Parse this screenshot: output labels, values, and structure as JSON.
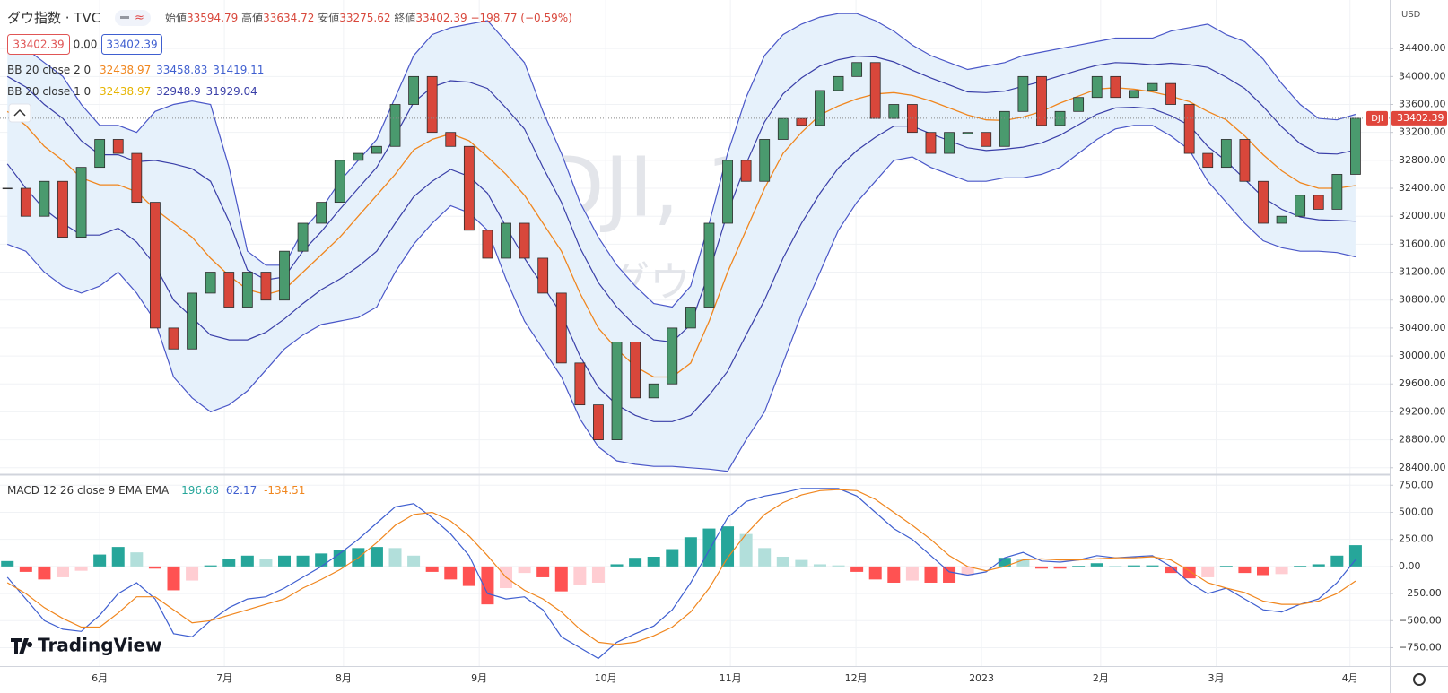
{
  "header": {
    "symbol": "ダウ指数 · TVC",
    "open_label": "始値",
    "open": 33594.79,
    "high_label": "高値",
    "high": 33634.72,
    "low_label": "安値",
    "low": 33275.62,
    "close_label": "終値",
    "change": "−198.77 (−0.59%)",
    "spread": "0.00",
    "currency": "USD",
    "brand": "TradingView"
  },
  "chart_data": [
    {
      "type": "candlestick",
      "title": "DJI, 1日",
      "subtitle": "ダウ指数",
      "symbol_tag": "DJI",
      "up_color": "#4a9a6e",
      "down_color": "#d8473b",
      "last_color": "#e0463c",
      "middle_color": "#f0861e",
      "middle_alt_color": "#e6b400",
      "fill_color": "#e6f1fb",
      "xlim": [
        -0.4,
        74.85
      ],
      "ylim": [
        28320,
        35095
      ],
      "yticks": [
        {
          "value": 28400,
          "label": "28400.00"
        },
        {
          "value": 28800,
          "label": "28800.00"
        },
        {
          "value": 29200,
          "label": "29200.00"
        },
        {
          "value": 29600,
          "label": "29600.00"
        },
        {
          "value": 30000,
          "label": "30000.00"
        },
        {
          "value": 30400,
          "label": "30400.00"
        },
        {
          "value": 30800,
          "label": "30800.00"
        },
        {
          "value": 31200,
          "label": "31200.00"
        },
        {
          "value": 31600,
          "label": "31600.00"
        },
        {
          "value": 32000,
          "label": "32000.00"
        },
        {
          "value": 32400,
          "label": "32400.00"
        },
        {
          "value": 32800,
          "label": "32800.00"
        },
        {
          "value": 33200,
          "label": "33200.00"
        },
        {
          "value": 33600,
          "label": "33600.00"
        },
        {
          "value": 34000,
          "label": "34000.00"
        },
        {
          "value": 34400,
          "label": "34400.00"
        }
      ],
      "close": [
        32400,
        32000,
        32500,
        31700,
        32700,
        33100,
        32900,
        32200,
        30400,
        30100,
        30900,
        31200,
        30700,
        31200,
        30800,
        31500,
        31900,
        32200,
        32800,
        32900,
        33000,
        33600,
        34000,
        33200,
        33000,
        31800,
        31400,
        31900,
        31400,
        30900,
        29900,
        29300,
        28800,
        30200,
        29400,
        29600,
        30400,
        30700,
        31900,
        32800,
        32500,
        33100,
        33400,
        33300,
        33800,
        34000,
        34200,
        33400,
        33600,
        33200,
        32900,
        33200,
        33200,
        33000,
        33500,
        34000,
        33300,
        33500,
        33700,
        34000,
        33700,
        33800,
        33900,
        33600,
        32900,
        32700,
        33100,
        32500,
        31900,
        32000,
        32300,
        32100,
        32600,
        33402.39
      ],
      "middle": [
        33500,
        33300,
        33000,
        32800,
        32550,
        32450,
        32450,
        32350,
        32100,
        31900,
        31700,
        31400,
        31150,
        30950,
        30880,
        30950,
        31200,
        31450,
        31700,
        32000,
        32300,
        32600,
        32950,
        33100,
        33180,
        33080,
        32850,
        32600,
        32300,
        31900,
        31500,
        30900,
        30400,
        30100,
        29850,
        29700,
        29700,
        29900,
        30500,
        31200,
        31800,
        32400,
        32900,
        33200,
        33450,
        33580,
        33680,
        33750,
        33770,
        33730,
        33650,
        33550,
        33450,
        33380,
        33370,
        33420,
        33500,
        33620,
        33720,
        33820,
        33840,
        33820,
        33780,
        33720,
        33640,
        33500,
        33380,
        33150,
        32880,
        32650,
        32480,
        32400,
        32400,
        32438.97
      ],
      "bands": [
        {
          "name": "BB 20 close 2 0",
          "color": "#4a57c8",
          "upper": [
            34500,
            34400,
            34200,
            34000,
            33600,
            33300,
            33300,
            33200,
            33500,
            33600,
            33650,
            33600,
            32700,
            31500,
            31300,
            31300,
            31800,
            32100,
            32500,
            32800,
            33100,
            33700,
            34300,
            34600,
            34700,
            34750,
            34800,
            34500,
            34200,
            33500,
            32900,
            32200,
            31700,
            31300,
            31000,
            30750,
            30700,
            31000,
            31900,
            32900,
            33700,
            34300,
            34600,
            34750,
            34850,
            34900,
            34900,
            34800,
            34650,
            34450,
            34300,
            34200,
            34100,
            34150,
            34200,
            34300,
            34350,
            34400,
            34450,
            34500,
            34550,
            34550,
            34550,
            34650,
            34700,
            34750,
            34600,
            34500,
            34250,
            33900,
            33600,
            33400,
            33380,
            33458.83
          ],
          "lower": [
            31600,
            31500,
            31200,
            31000,
            30900,
            31000,
            31200,
            30900,
            30500,
            29700,
            29400,
            29200,
            29300,
            29500,
            29800,
            30100,
            30300,
            30450,
            30500,
            30550,
            30700,
            31200,
            31600,
            31900,
            32150,
            32050,
            31800,
            31100,
            30500,
            30100,
            29700,
            29100,
            28700,
            28500,
            28450,
            28420,
            28420,
            28400,
            28380,
            28350,
            28800,
            29200,
            29900,
            30600,
            31200,
            31800,
            32200,
            32500,
            32800,
            32850,
            32700,
            32600,
            32500,
            32500,
            32550,
            32550,
            32600,
            32700,
            32900,
            33100,
            33250,
            33300,
            33300,
            33150,
            32950,
            32500,
            32200,
            31900,
            31650,
            31550,
            31500,
            31500,
            31480,
            31419.11
          ]
        },
        {
          "name": "BB 20 close 1 0",
          "color": "#3a3fa8",
          "upper": [
            34000,
            33850,
            33600,
            33400,
            33080,
            32880,
            32880,
            32780,
            32800,
            32750,
            32680,
            32500,
            31930,
            31230,
            31090,
            31130,
            31500,
            31780,
            32100,
            32400,
            32700,
            33150,
            33630,
            33850,
            33940,
            33920,
            33830,
            33550,
            33250,
            32700,
            32200,
            31550,
            31050,
            30700,
            30430,
            30230,
            30200,
            30450,
            31200,
            32050,
            32750,
            33350,
            33750,
            33980,
            34150,
            34240,
            34290,
            34280,
            34210,
            34090,
            33980,
            33880,
            33780,
            33770,
            33790,
            33860,
            33930,
            34010,
            34090,
            34160,
            34200,
            34190,
            34170,
            34190,
            34170,
            34130,
            33990,
            33830,
            33570,
            33280,
            33040,
            32900,
            32890,
            32948.9
          ],
          "lower": [
            32750,
            32400,
            32100,
            31900,
            31730,
            31730,
            31830,
            31630,
            31300,
            30800,
            30550,
            30300,
            30230,
            30230,
            30340,
            30530,
            30750,
            30950,
            31100,
            31280,
            31500,
            31900,
            32280,
            32500,
            32670,
            32570,
            32330,
            31850,
            31400,
            31000,
            30600,
            30000,
            29550,
            29300,
            29150,
            29060,
            29060,
            29150,
            29440,
            29780,
            30300,
            30800,
            31400,
            31900,
            32330,
            32690,
            32940,
            33130,
            33290,
            33290,
            33180,
            33080,
            32980,
            32940,
            32960,
            32990,
            33050,
            33160,
            33310,
            33460,
            33550,
            33560,
            33540,
            33440,
            33300,
            33000,
            32790,
            32530,
            32270,
            32100,
            31990,
            31950,
            31940,
            31929.04
          ]
        }
      ]
    },
    {
      "type": "macd",
      "title": "MACD 12 26 close 9 EMA EMA",
      "macd_color": "#3f5fd0",
      "signal_color": "#f0861e",
      "hist_colors": [
        "#26a69a",
        "#b2dfdb",
        "#ff5252",
        "#ffcdd2"
      ],
      "xlim": [
        -0.4,
        74.85
      ],
      "ylim": [
        -920,
        835
      ],
      "yticks": [
        {
          "value": 750,
          "label": "750.00"
        },
        {
          "value": 500,
          "label": "500.00"
        },
        {
          "value": 250,
          "label": "250.00"
        },
        {
          "value": 0,
          "label": "0.00"
        },
        {
          "value": -250,
          "label": "−250.00"
        },
        {
          "value": -500,
          "label": "−500.00"
        },
        {
          "value": -750,
          "label": "−750.00"
        }
      ],
      "xticks": [
        {
          "value": 5.0,
          "label": "6月"
        },
        {
          "value": 11.75,
          "label": "7月"
        },
        {
          "value": 18.2,
          "label": "8月"
        },
        {
          "value": 25.55,
          "label": "9月"
        },
        {
          "value": 32.4,
          "label": "10月"
        },
        {
          "value": 39.15,
          "label": "11月"
        },
        {
          "value": 45.95,
          "label": "12月"
        },
        {
          "value": 52.75,
          "label": "2023"
        },
        {
          "value": 59.2,
          "label": "2月"
        },
        {
          "value": 65.45,
          "label": "3月"
        },
        {
          "value": 72.7,
          "label": "4月"
        }
      ],
      "histogram": [
        50,
        -50,
        -120,
        -100,
        -40,
        110,
        180,
        130,
        -20,
        -220,
        -130,
        10,
        70,
        100,
        70,
        100,
        100,
        120,
        150,
        170,
        180,
        170,
        100,
        -50,
        -120,
        -180,
        -350,
        -200,
        -60,
        -100,
        -230,
        -170,
        -150,
        20,
        80,
        90,
        160,
        270,
        350,
        370,
        300,
        170,
        90,
        60,
        20,
        10,
        -50,
        -120,
        -150,
        -130,
        -150,
        -150,
        -80,
        -10,
        80,
        70,
        -20,
        -20,
        5,
        30,
        5,
        10,
        10,
        -60,
        -110,
        -100,
        5,
        -60,
        -80,
        -70,
        5,
        20,
        100,
        196.68
      ],
      "macd": [
        -100,
        -300,
        -500,
        -580,
        -600,
        -450,
        -250,
        -150,
        -300,
        -620,
        -650,
        -500,
        -380,
        -300,
        -280,
        -200,
        -100,
        0,
        120,
        250,
        400,
        550,
        580,
        450,
        300,
        100,
        -250,
        -300,
        -280,
        -400,
        -650,
        -750,
        -850,
        -700,
        -620,
        -550,
        -400,
        -150,
        150,
        450,
        600,
        650,
        680,
        720,
        720,
        720,
        650,
        500,
        350,
        250,
        100,
        -50,
        -80,
        -50,
        80,
        130,
        50,
        40,
        60,
        100,
        80,
        90,
        100,
        0,
        -150,
        -250,
        -200,
        -300,
        -400,
        -420,
        -350,
        -300,
        -150,
        62.17
      ],
      "signal": [
        -150,
        -250,
        -380,
        -480,
        -560,
        -560,
        -430,
        -280,
        -280,
        -400,
        -520,
        -500,
        -450,
        -400,
        -350,
        -300,
        -200,
        -120,
        -30,
        80,
        220,
        380,
        480,
        500,
        420,
        280,
        100,
        -100,
        -220,
        -300,
        -420,
        -580,
        -700,
        -720,
        -700,
        -640,
        -560,
        -420,
        -200,
        80,
        300,
        480,
        590,
        660,
        700,
        710,
        700,
        620,
        500,
        380,
        250,
        100,
        0,
        -40,
        0,
        60,
        70,
        60,
        60,
        70,
        80,
        80,
        90,
        60,
        -40,
        -150,
        -200,
        -240,
        -320,
        -350,
        -350,
        -320,
        -250,
        -134.51
      ]
    }
  ]
}
